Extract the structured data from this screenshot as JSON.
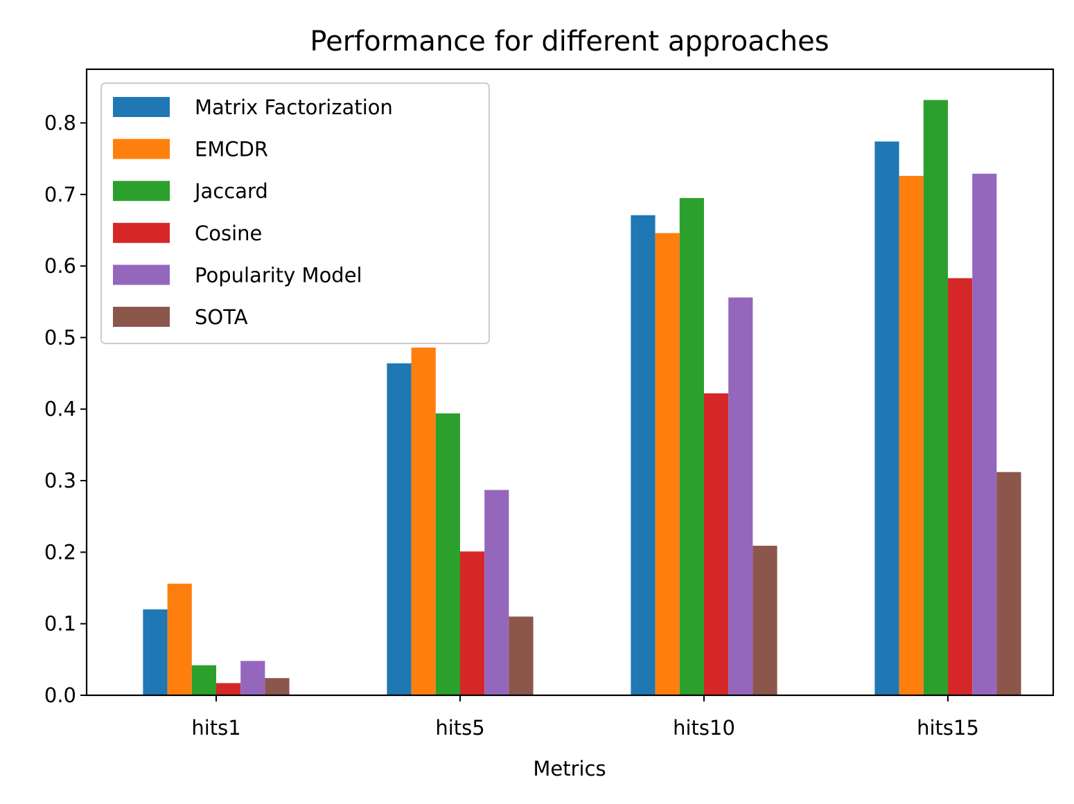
{
  "chart_data": {
    "type": "bar",
    "title": "Performance for different approaches",
    "xlabel": "Metrics",
    "ylabel": "",
    "categories": [
      "hits1",
      "hits5",
      "hits10",
      "hits15"
    ],
    "ylim": [
      0,
      0.875
    ],
    "yticks": [
      "0.0",
      "0.1",
      "0.2",
      "0.3",
      "0.4",
      "0.5",
      "0.6",
      "0.7",
      "0.8"
    ],
    "grid": false,
    "legend_position": "top-left",
    "series": [
      {
        "name": "Matrix Factorization",
        "color": "#1f77b4",
        "values": [
          0.12,
          0.464,
          0.671,
          0.774
        ]
      },
      {
        "name": "EMCDR",
        "color": "#ff7f0e",
        "values": [
          0.156,
          0.486,
          0.646,
          0.726
        ]
      },
      {
        "name": "Jaccard",
        "color": "#2ca02c",
        "values": [
          0.042,
          0.394,
          0.695,
          0.832
        ]
      },
      {
        "name": "Cosine",
        "color": "#d62728",
        "values": [
          0.017,
          0.201,
          0.422,
          0.583
        ]
      },
      {
        "name": "Popularity Model",
        "color": "#9467bd",
        "values": [
          0.048,
          0.287,
          0.556,
          0.729
        ]
      },
      {
        "name": "SOTA",
        "color": "#8c564b",
        "values": [
          0.024,
          0.11,
          0.209,
          0.312
        ]
      }
    ]
  }
}
